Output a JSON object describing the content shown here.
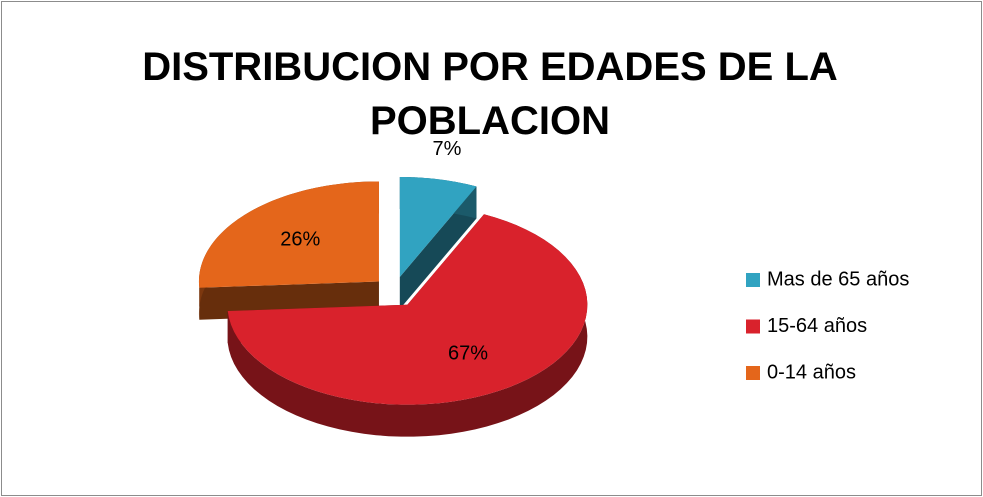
{
  "chart_data": {
    "type": "pie",
    "title": "DISTRIBUCION POR EDADES DE LA POBLACION",
    "categories": [
      "Mas de 65 años",
      "15-64 años",
      "0-14 años"
    ],
    "values": [
      7,
      67,
      26
    ],
    "value_labels": [
      "7%",
      "67%",
      "26%"
    ],
    "colors": [
      "#31a3c1",
      "#d9222c",
      "#e4661b"
    ],
    "legend": "right"
  }
}
